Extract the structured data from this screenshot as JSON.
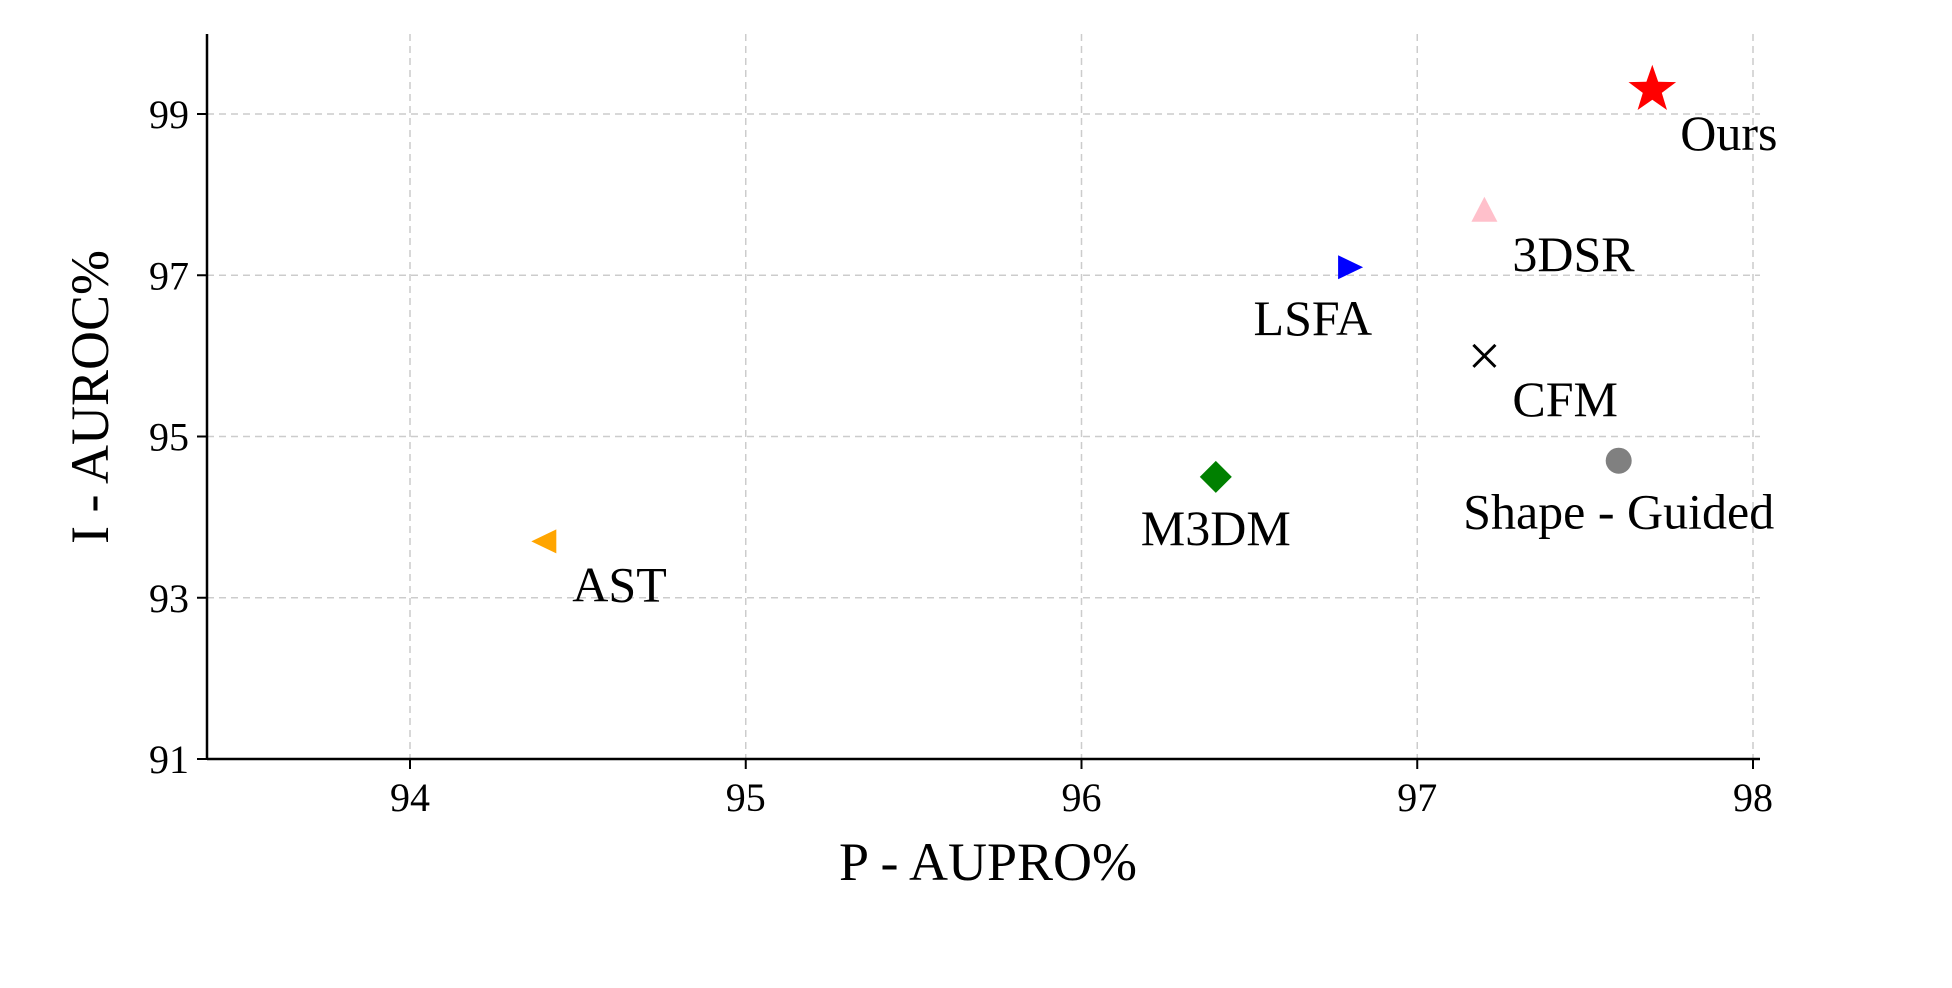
{
  "chart_data": {
    "type": "scatter",
    "xlabel": "P - AUPRO%",
    "ylabel": "I - AUROC%",
    "xlim": [
      93.45,
      98
    ],
    "ylim": [
      91,
      99.9
    ],
    "xticks": [
      94,
      95,
      96,
      97,
      98
    ],
    "yticks": [
      91,
      93,
      95,
      97,
      99
    ],
    "xtick_labels": [
      "94",
      "95",
      "96",
      "97",
      "98"
    ],
    "ytick_labels": [
      "91",
      "93",
      "95",
      "97",
      "99"
    ],
    "grid": true,
    "points": [
      {
        "label": "AST",
        "x": 94.4,
        "y": 93.7,
        "marker": "triangle-left",
        "color": "#ffa500",
        "label_position": "below-right"
      },
      {
        "label": "M3DM",
        "x": 96.4,
        "y": 94.5,
        "marker": "diamond",
        "color": "#008000",
        "label_position": "below"
      },
      {
        "label": "LSFA",
        "x": 96.8,
        "y": 97.1,
        "marker": "triangle-right",
        "color": "#0000ff",
        "label_position": "below-left"
      },
      {
        "label": "CFM",
        "x": 97.2,
        "y": 96.0,
        "marker": "x",
        "color": "#000000",
        "label_position": "below-right"
      },
      {
        "label": "3DSR",
        "x": 97.2,
        "y": 97.8,
        "marker": "triangle-up",
        "color": "#ffc0cb",
        "label_position": "below-right"
      },
      {
        "label": "Shape - Guided",
        "x": 97.6,
        "y": 94.7,
        "marker": "circle",
        "color": "#808080",
        "label_position": "below"
      },
      {
        "label": "Ours",
        "x": 97.7,
        "y": 99.3,
        "marker": "star",
        "color": "#ff0000",
        "label_position": "below-right"
      }
    ]
  }
}
